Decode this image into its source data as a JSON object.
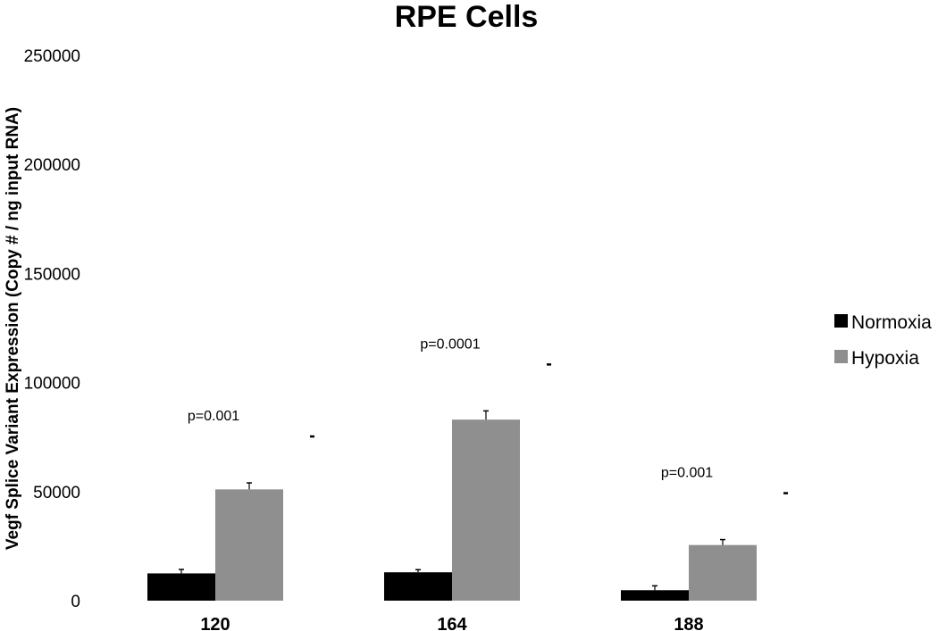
{
  "chart_data": {
    "type": "bar",
    "title": "RPE Cells",
    "xlabel": "",
    "ylabel": "Vegf Splice Variant Expression (Copy # / ng input RNA)",
    "categories": [
      "120",
      "164",
      "188"
    ],
    "series": [
      {
        "name": "Normoxia",
        "values": [
          12500,
          13000,
          4800
        ],
        "errors": [
          1800,
          1200,
          2000
        ],
        "color": "#000000"
      },
      {
        "name": "Hypoxia",
        "values": [
          51000,
          83000,
          25500
        ],
        "errors": [
          3000,
          4000,
          2500
        ],
        "color": "#8f8f8f"
      }
    ],
    "ylim": [
      0,
      250000
    ],
    "yticks": [
      "0",
      "50000",
      "100000",
      "150000",
      "200000",
      "250000"
    ],
    "annotations": [
      {
        "category": "120",
        "text": "p=0.001"
      },
      {
        "category": "164",
        "text": "p=0.0001"
      },
      {
        "category": "188",
        "text": "p=0.001"
      }
    ],
    "grid": false,
    "legend_position": "right"
  }
}
